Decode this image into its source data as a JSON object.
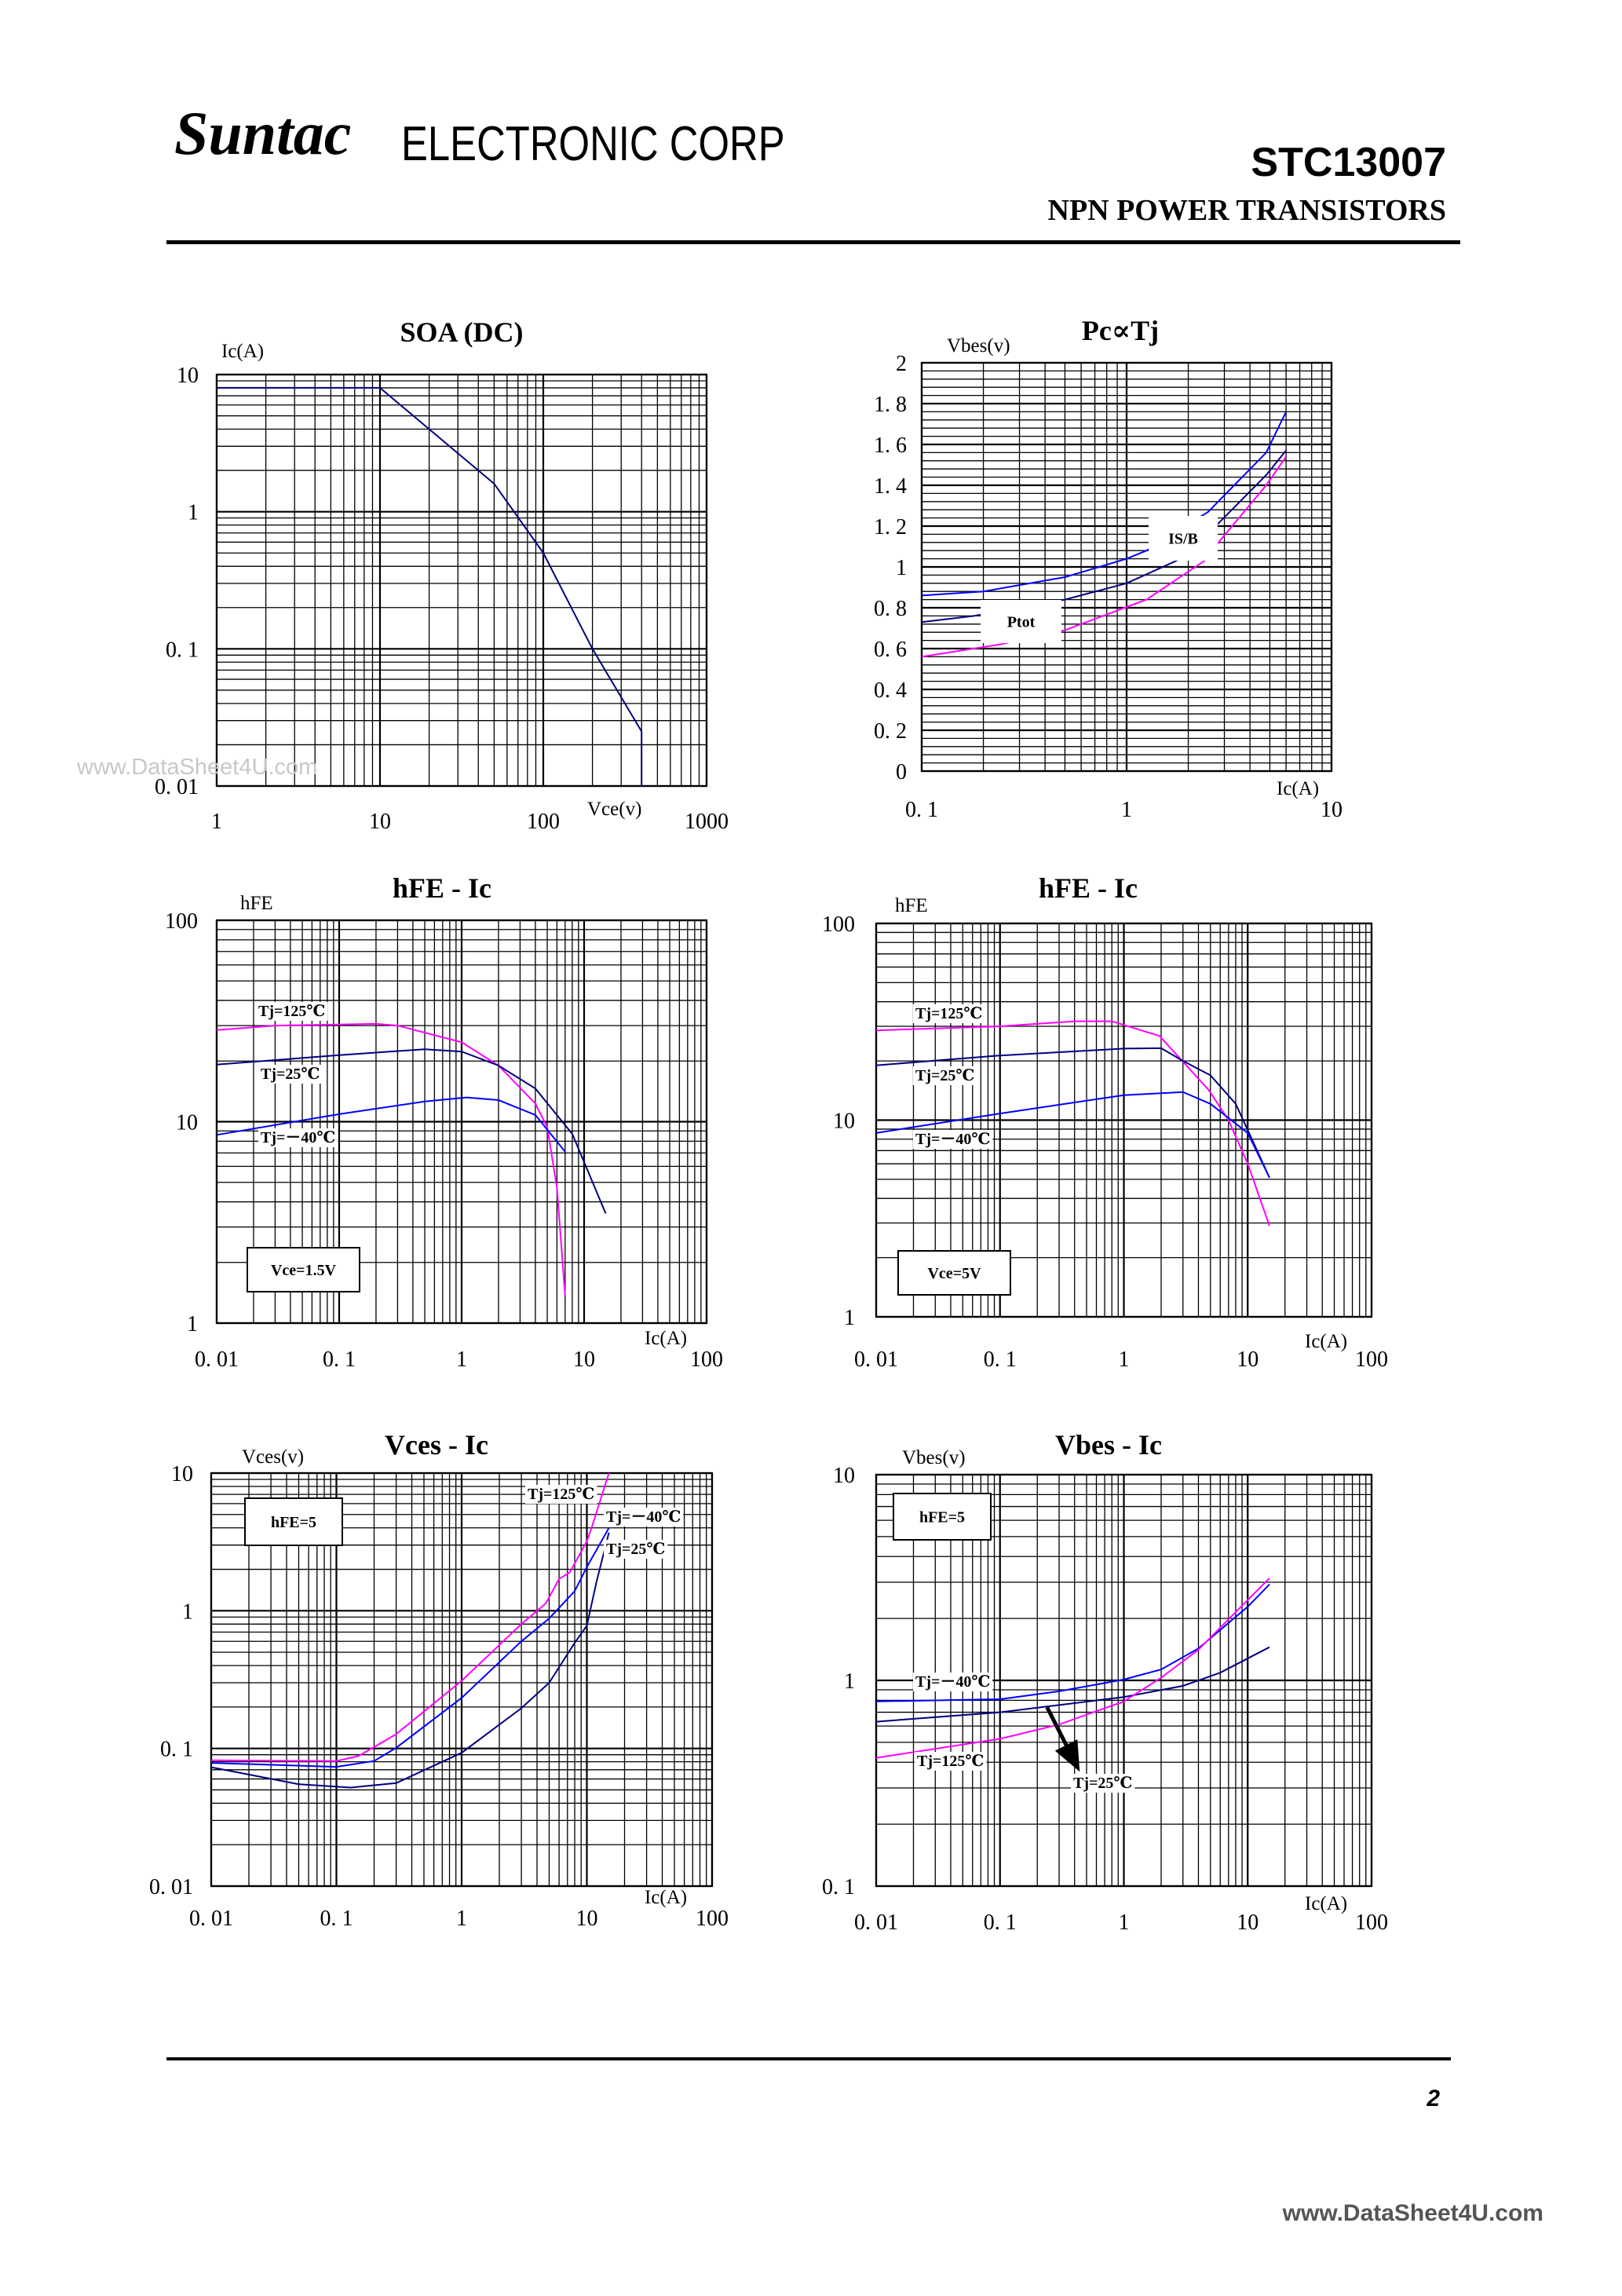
{
  "header": {
    "logo": "Suntac",
    "company": "ELECTRONIC CORP",
    "part_number": "STC13007",
    "subtitle": "NPN POWER TRANSISTORS"
  },
  "watermark": "www.DataSheet4U.com",
  "footer": {
    "page": "2",
    "site": "www.DataSheet4U.com"
  },
  "colors": {
    "tj_125": "#ff00ff",
    "tj_25": "#000080",
    "tj_minus40": "#0000ff",
    "grid": "#000000"
  },
  "chart_data": [
    {
      "type": "line",
      "title": "SOA (DC)",
      "xlabel": "Vce(v)",
      "ylabel": "Ic(A)",
      "x_scale": "log",
      "y_scale": "log",
      "xlim": [
        1,
        1000
      ],
      "ylim": [
        0.01,
        10
      ],
      "grid": true,
      "x_ticks": [
        {
          "v": 1,
          "label": "1"
        },
        {
          "v": 10,
          "label": "10"
        },
        {
          "v": 100,
          "label": "100"
        },
        {
          "v": 1000,
          "label": "1000"
        }
      ],
      "y_ticks": [
        {
          "v": 10,
          "label": "10"
        },
        {
          "v": 1,
          "label": "1"
        },
        {
          "v": 0.1,
          "label": "0. 1"
        },
        {
          "v": 0.01,
          "label": "0. 01"
        }
      ],
      "series": [
        {
          "color": "#000080",
          "points": [
            [
              1,
              8
            ],
            [
              10,
              8
            ],
            [
              20,
              4
            ],
            [
              50,
              1.6
            ],
            [
              100,
              0.5
            ],
            [
              200,
              0.1
            ],
            [
              400,
              0.025
            ],
            [
              400,
              0.01
            ]
          ]
        }
      ],
      "annotations": []
    },
    {
      "type": "line",
      "title": "Pc∝Tj",
      "xlabel": "Ic(A)",
      "ylabel": "Vbes(v)",
      "x_scale": "log",
      "y_scale": "linear",
      "xlim": [
        0.1,
        10
      ],
      "ylim": [
        0,
        2
      ],
      "grid": true,
      "x_ticks": [
        {
          "v": 0.1,
          "label": "0. 1"
        },
        {
          "v": 1,
          "label": "1"
        },
        {
          "v": 10,
          "label": "10"
        }
      ],
      "y_ticks": [
        {
          "v": 2,
          "label": "2"
        },
        {
          "v": 1.8,
          "label": "1. 8"
        },
        {
          "v": 1.6,
          "label": "1. 6"
        },
        {
          "v": 1.4,
          "label": "1. 4"
        },
        {
          "v": 1.2,
          "label": "1. 2"
        },
        {
          "v": 1,
          "label": "1"
        },
        {
          "v": 0.8,
          "label": "0. 8"
        },
        {
          "v": 0.6,
          "label": "0. 6"
        },
        {
          "v": 0.4,
          "label": "0. 4"
        },
        {
          "v": 0.2,
          "label": "0. 2"
        },
        {
          "v": 0,
          "label": "0"
        }
      ],
      "series": [
        {
          "color": "#0000ff",
          "points": [
            [
              0.1,
              0.86
            ],
            [
              0.2,
              0.88
            ],
            [
              0.5,
              0.95
            ],
            [
              1,
              1.04
            ],
            [
              1.25,
              1.08
            ],
            [
              2.5,
              1.27
            ],
            [
              4.8,
              1.56
            ],
            [
              6,
              1.76
            ]
          ]
        },
        {
          "color": "#000080",
          "points": [
            [
              0.1,
              0.73
            ],
            [
              0.18,
              0.76
            ],
            [
              0.5,
              0.84
            ],
            [
              1,
              0.92
            ],
            [
              1.75,
              1.03
            ],
            [
              2.6,
              1.18
            ],
            [
              4.8,
              1.45
            ],
            [
              6,
              1.57
            ]
          ]
        },
        {
          "color": "#ff00ff",
          "points": [
            [
              0.1,
              0.56
            ],
            [
              0.24,
              0.62
            ],
            [
              0.5,
              0.69
            ],
            [
              1.25,
              0.84
            ],
            [
              2.4,
              1.03
            ],
            [
              2.6,
              1.08
            ],
            [
              4.8,
              1.4
            ],
            [
              6,
              1.54
            ]
          ]
        }
      ],
      "annotations": [
        {
          "text": "IS/B"
        },
        {
          "text": "Ptot"
        }
      ]
    },
    {
      "type": "line",
      "title": "hFE - Ic",
      "xlabel": "Ic(A)",
      "ylabel": "hFE",
      "x_scale": "log",
      "y_scale": "log",
      "xlim": [
        0.01,
        100
      ],
      "ylim": [
        1,
        100
      ],
      "grid": true,
      "x_ticks": [
        {
          "v": 0.01,
          "label": "0. 01"
        },
        {
          "v": 0.1,
          "label": "0. 1"
        },
        {
          "v": 1,
          "label": "1"
        },
        {
          "v": 10,
          "label": "10"
        },
        {
          "v": 100,
          "label": "100"
        }
      ],
      "y_ticks": [
        {
          "v": 100,
          "label": "100"
        },
        {
          "v": 10,
          "label": "10"
        },
        {
          "v": 1,
          "label": "1"
        }
      ],
      "condition": "Vce=1.5V",
      "series": [
        {
          "name": "Tj=125℃",
          "color": "#ff00ff",
          "points": [
            [
              0.01,
              28.5
            ],
            [
              0.03,
              30
            ],
            [
              0.2,
              30.6
            ],
            [
              0.3,
              30
            ],
            [
              1,
              24.8
            ],
            [
              2,
              19
            ],
            [
              4,
              12.3
            ],
            [
              5,
              9.4
            ],
            [
              6,
              4.7
            ],
            [
              7,
              1.37
            ]
          ]
        },
        {
          "name": "Tj=25℃",
          "color": "#000080",
          "points": [
            [
              0.01,
              19.2
            ],
            [
              0.1,
              21.4
            ],
            [
              0.5,
              22.9
            ],
            [
              1,
              22.3
            ],
            [
              2,
              19
            ],
            [
              4,
              14.6
            ],
            [
              8,
              8.7
            ],
            [
              15,
              3.5
            ]
          ]
        },
        {
          "name": "Tj=－40℃",
          "color": "#0000ff",
          "points": [
            [
              0.01,
              8.6
            ],
            [
              0.1,
              10.9
            ],
            [
              0.5,
              12.6
            ],
            [
              1.1,
              13.2
            ],
            [
              2,
              12.8
            ],
            [
              4,
              10.8
            ],
            [
              7,
              7.1
            ]
          ]
        }
      ],
      "annotations": [
        {
          "text": "Tj=125℃"
        },
        {
          "text": "Tj=25℃"
        },
        {
          "text": "Tj=－40℃"
        }
      ]
    },
    {
      "type": "line",
      "title": "hFE - Ic",
      "xlabel": "Ic(A)",
      "ylabel": "hFE",
      "x_scale": "log",
      "y_scale": "log",
      "xlim": [
        0.01,
        100
      ],
      "ylim": [
        1,
        100
      ],
      "grid": true,
      "x_ticks": [
        {
          "v": 0.01,
          "label": "0. 01"
        },
        {
          "v": 0.1,
          "label": "0. 1"
        },
        {
          "v": 1,
          "label": "1"
        },
        {
          "v": 10,
          "label": "10"
        },
        {
          "v": 100,
          "label": "100"
        }
      ],
      "y_ticks": [
        {
          "v": 100,
          "label": "100"
        },
        {
          "v": 10,
          "label": "10"
        },
        {
          "v": 1,
          "label": "1"
        }
      ],
      "condition": "Vce=5V",
      "series": [
        {
          "name": "Tj=125℃",
          "color": "#ff00ff",
          "points": [
            [
              0.01,
              28.6
            ],
            [
              0.1,
              30
            ],
            [
              0.4,
              31.8
            ],
            [
              0.8,
              31.8
            ],
            [
              1.94,
              26.8
            ],
            [
              3,
              19.8
            ],
            [
              4.86,
              14.2
            ],
            [
              7,
              10
            ],
            [
              10,
              6
            ],
            [
              15,
              2.9
            ]
          ]
        },
        {
          "name": "Tj=25℃",
          "color": "#000080",
          "points": [
            [
              0.01,
              19
            ],
            [
              0.1,
              21.3
            ],
            [
              1,
              23.1
            ],
            [
              2,
              23.2
            ],
            [
              3,
              20
            ],
            [
              5,
              16.9
            ],
            [
              8,
              12.1
            ],
            [
              10,
              8.9
            ],
            [
              15,
              5.1
            ]
          ]
        },
        {
          "name": "Tj=－40℃",
          "color": "#0000ff",
          "points": [
            [
              0.01,
              8.6
            ],
            [
              0.1,
              10.8
            ],
            [
              1,
              13.4
            ],
            [
              3,
              13.9
            ],
            [
              5,
              12.1
            ],
            [
              10,
              8.6
            ],
            [
              15,
              5.1
            ]
          ]
        }
      ],
      "annotations": [
        {
          "text": "Tj=125℃"
        },
        {
          "text": "Tj=25℃"
        },
        {
          "text": "Tj=－40℃"
        }
      ]
    },
    {
      "type": "line",
      "title": "Vces - Ic",
      "xlabel": "Ic(A)",
      "ylabel": "Vces(v)",
      "x_scale": "log",
      "y_scale": "log",
      "xlim": [
        0.01,
        100
      ],
      "ylim": [
        0.01,
        10
      ],
      "grid": true,
      "x_ticks": [
        {
          "v": 0.01,
          "label": "0. 01"
        },
        {
          "v": 0.1,
          "label": "0. 1"
        },
        {
          "v": 1,
          "label": "1"
        },
        {
          "v": 10,
          "label": "10"
        },
        {
          "v": 100,
          "label": "100"
        }
      ],
      "y_ticks": [
        {
          "v": 10,
          "label": "10"
        },
        {
          "v": 1,
          "label": "1"
        },
        {
          "v": 0.1,
          "label": "0. 1"
        },
        {
          "v": 0.01,
          "label": "0. 01"
        }
      ],
      "condition": "hFE=5",
      "series": [
        {
          "name": "Tj=125℃",
          "color": "#ff00ff",
          "points": [
            [
              0.01,
              0.082
            ],
            [
              0.1,
              0.081
            ],
            [
              0.15,
              0.088
            ],
            [
              0.3,
              0.127
            ],
            [
              1,
              0.31
            ],
            [
              3,
              0.8
            ],
            [
              4.7,
              1.13
            ],
            [
              6,
              1.7
            ],
            [
              7.3,
              1.9
            ],
            [
              10,
              3.2
            ],
            [
              11,
              4.1
            ],
            [
              15,
              10
            ]
          ]
        },
        {
          "name": "Tj=－40℃",
          "color": "#0000ff",
          "points": [
            [
              0.01,
              0.0785
            ],
            [
              0.1,
              0.0735
            ],
            [
              0.2,
              0.081
            ],
            [
              0.3,
              0.101
            ],
            [
              1,
              0.233
            ],
            [
              3,
              0.6
            ],
            [
              5,
              0.88
            ],
            [
              8,
              1.39
            ],
            [
              10,
              2.08
            ],
            [
              15,
              4
            ]
          ]
        },
        {
          "name": "Tj=25℃",
          "color": "#000080",
          "points": [
            [
              0.01,
              0.073
            ],
            [
              0.05,
              0.055
            ],
            [
              0.13,
              0.052
            ],
            [
              0.3,
              0.056
            ],
            [
              1,
              0.093
            ],
            [
              3,
              0.196
            ],
            [
              5,
              0.3
            ],
            [
              8,
              0.585
            ],
            [
              10,
              0.78
            ],
            [
              12,
              1.65
            ],
            [
              15,
              3.7
            ]
          ]
        }
      ],
      "annotations": [
        {
          "text": "Tj=125℃"
        },
        {
          "text": "Tj=－40℃"
        },
        {
          "text": "Tj=25℃"
        }
      ]
    },
    {
      "type": "line",
      "title": "Vbes - Ic",
      "xlabel": "Ic(A)",
      "ylabel": "Vbes(v)",
      "x_scale": "log",
      "y_scale": "log",
      "xlim": [
        0.01,
        100
      ],
      "ylim": [
        0.1,
        10
      ],
      "grid": true,
      "x_ticks": [
        {
          "v": 0.01,
          "label": "0. 01"
        },
        {
          "v": 0.1,
          "label": "0. 1"
        },
        {
          "v": 1,
          "label": "1"
        },
        {
          "v": 10,
          "label": "10"
        },
        {
          "v": 100,
          "label": "100"
        }
      ],
      "y_ticks": [
        {
          "v": 10,
          "label": "10"
        },
        {
          "v": 1,
          "label": "1"
        },
        {
          "v": 0.1,
          "label": "0. 1"
        }
      ],
      "condition": "hFE=5",
      "series": [
        {
          "name": "Tj=－40℃",
          "color": "#0000ff",
          "points": [
            [
              0.01,
              0.79
            ],
            [
              0.1,
              0.81
            ],
            [
              0.3,
              0.885
            ],
            [
              1,
              1.01
            ],
            [
              2,
              1.13
            ],
            [
              4,
              1.43
            ],
            [
              10,
              2.28
            ],
            [
              15,
              2.93
            ]
          ]
        },
        {
          "name": "Tj=25℃",
          "color": "#000080",
          "points": [
            [
              0.01,
              0.63
            ],
            [
              0.1,
              0.7
            ],
            [
              1,
              0.83
            ],
            [
              3,
              0.94
            ],
            [
              6,
              1.09
            ],
            [
              15,
              1.45
            ]
          ]
        },
        {
          "name": "Tj=125℃",
          "color": "#ff00ff",
          "points": [
            [
              0.01,
              0.42
            ],
            [
              0.1,
              0.52
            ],
            [
              0.3,
              0.61
            ],
            [
              1,
              0.79
            ],
            [
              2,
              1.03
            ],
            [
              4,
              1.41
            ],
            [
              8,
              2.15
            ],
            [
              15,
              3.14
            ]
          ]
        }
      ],
      "arrow": {
        "from": [
          0.24,
          0.74
        ],
        "to": [
          0.44,
          0.36
        ]
      },
      "annotations": [
        {
          "text": "Tj=－40℃"
        },
        {
          "text": "Tj=125℃"
        },
        {
          "text": "Tj=25℃"
        }
      ]
    }
  ]
}
